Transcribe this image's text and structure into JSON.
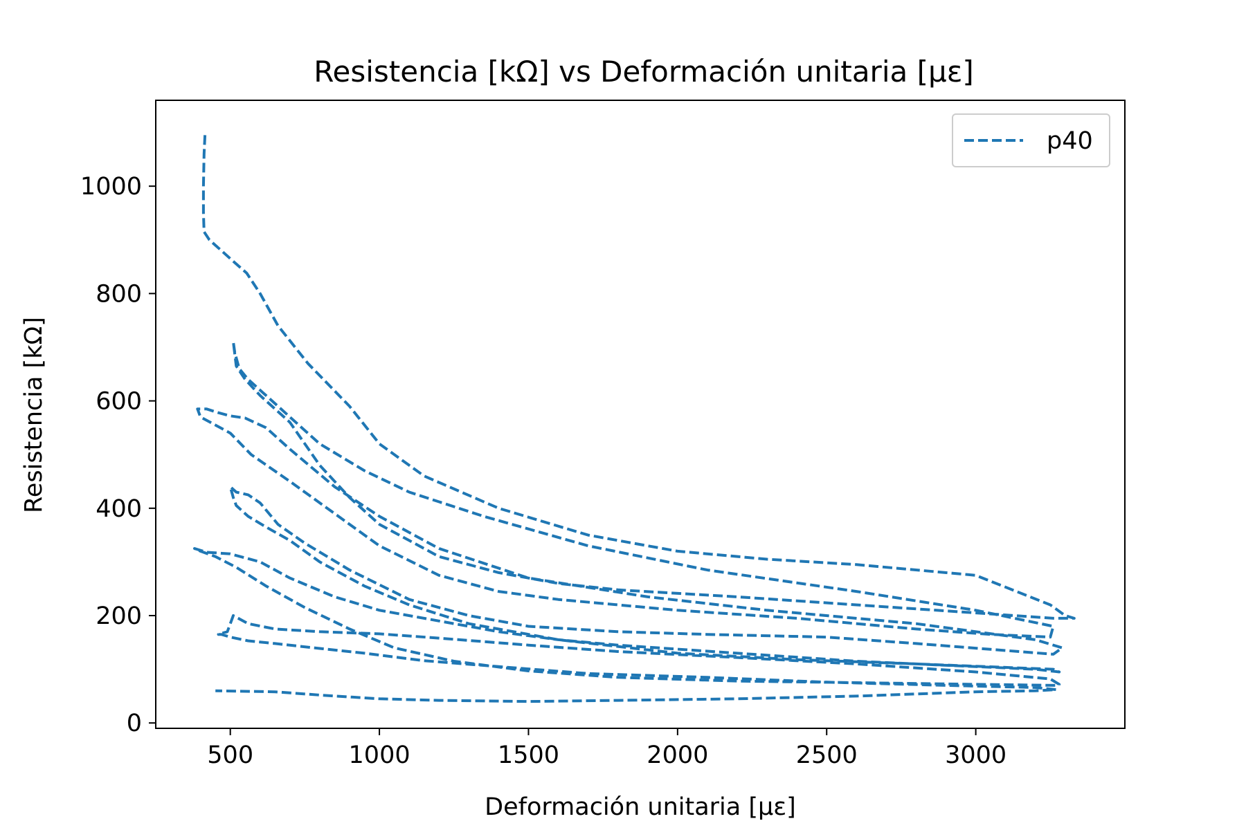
{
  "chart_data": {
    "type": "line",
    "title": "Resistencia [kΩ] vs Deformación unitaria [με]",
    "xlabel": "Deformación unitaria [με]",
    "ylabel": "Resistencia [kΩ]",
    "xlim": [
      250,
      3500
    ],
    "ylim": [
      -10,
      1160
    ],
    "xticks": [
      500,
      1000,
      1500,
      2000,
      2500,
      3000
    ],
    "yticks": [
      0,
      200,
      400,
      600,
      800,
      1000
    ],
    "grid": false,
    "legend_position": "top-right",
    "series": [
      {
        "name": "p40",
        "color": "#1f77b4",
        "line_style": "dashed",
        "x": [
          415,
          412,
          410,
          410,
          412,
          430,
          470,
          510,
          555,
          600,
          660,
          760,
          900,
          1000,
          1150,
          1400,
          1700,
          2000,
          2300,
          2600,
          3000,
          3250,
          3300,
          3330,
          3260,
          3000,
          2600,
          2200,
          1800,
          1600,
          1400,
          1200,
          1000,
          900,
          800,
          700,
          600,
          550,
          520,
          510,
          515,
          530,
          560,
          620,
          700,
          800,
          950,
          1100,
          1350,
          1700,
          2100,
          2600,
          3000,
          3260,
          3250,
          3050,
          2800,
          2400,
          2000,
          1800,
          1600,
          1400,
          1200,
          1000,
          850,
          700,
          570,
          500,
          400,
          390,
          420,
          460,
          500,
          550,
          620,
          700,
          850,
          1000,
          1200,
          1500,
          1900,
          2300,
          2800,
          3200,
          3290,
          3260,
          3100,
          2800,
          2500,
          2100,
          1800,
          1500,
          1300,
          1100,
          900,
          750,
          660,
          600,
          560,
          520,
          500,
          510,
          520,
          560,
          620,
          700,
          800,
          950,
          1100,
          1300,
          1600,
          2000,
          2400,
          2800,
          3260,
          3280,
          3200,
          3000,
          2600,
          2200,
          1800,
          1600,
          1400,
          1200,
          1000,
          850,
          700,
          600,
          500,
          420,
          380,
          400,
          450,
          520,
          620,
          750,
          900,
          1050,
          1250,
          1500,
          1800,
          2200,
          2600,
          3000,
          3270,
          3280,
          3250,
          3000,
          2600,
          2200,
          1800,
          1500,
          1200,
          1000,
          800,
          650,
          560,
          510,
          490,
          460,
          470,
          500,
          560,
          650,
          780,
          950,
          1150,
          1400,
          1700,
          2100,
          2500,
          2900,
          3200,
          3270,
          3200,
          3000,
          2600,
          2200,
          1800,
          1500,
          1200,
          1000,
          800,
          650,
          450
        ],
        "y": [
          1095,
          1060,
          1000,
          950,
          915,
          900,
          880,
          860,
          838,
          800,
          740,
          670,
          590,
          520,
          460,
          400,
          350,
          320,
          305,
          295,
          275,
          220,
          200,
          195,
          195,
          205,
          220,
          235,
          248,
          260,
          280,
          310,
          370,
          420,
          480,
          560,
          610,
          640,
          665,
          710,
          690,
          660,
          640,
          610,
          570,
          520,
          470,
          430,
          385,
          330,
          285,
          245,
          210,
          180,
          160,
          165,
          175,
          195,
          210,
          220,
          230,
          245,
          275,
          330,
          390,
          450,
          500,
          540,
          570,
          585,
          585,
          578,
          572,
          568,
          550,
          510,
          440,
          385,
          325,
          270,
          235,
          210,
          185,
          155,
          140,
          128,
          135,
          148,
          160,
          165,
          170,
          180,
          200,
          230,
          285,
          335,
          370,
          410,
          425,
          430,
          440,
          420,
          405,
          385,
          365,
          340,
          300,
          255,
          220,
          185,
          155,
          130,
          118,
          110,
          100,
          95,
          100,
          105,
          115,
          130,
          145,
          155,
          170,
          190,
          210,
          235,
          270,
          300,
          315,
          318,
          325,
          320,
          310,
          290,
          255,
          215,
          175,
          140,
          115,
          97,
          85,
          78,
          75,
          72,
          70,
          72,
          82,
          95,
          110,
          122,
          133,
          145,
          158,
          166,
          170,
          175,
          185,
          200,
          170,
          165,
          165,
          160,
          153,
          148,
          140,
          130,
          116,
          105,
          92,
          85,
          76,
          70,
          66,
          62,
          60,
          58,
          50,
          45,
          42,
          40,
          42,
          45,
          52,
          58,
          60
        ]
      }
    ]
  }
}
